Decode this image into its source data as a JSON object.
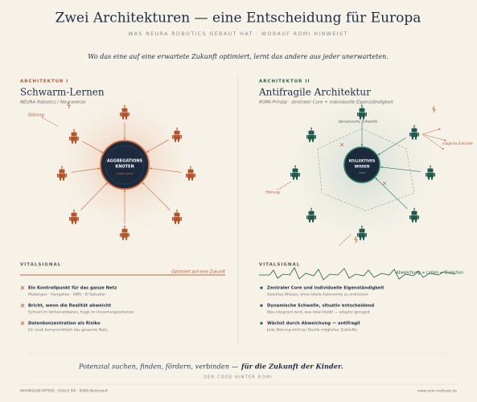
{
  "header": {
    "title": "Zwei Architekturen — eine Entscheidung für Europa",
    "subtitle": "WAS NEURA ROBOTICS GEBAUT HAT · WORAUF ROMI HINWEIST",
    "tagline": "Wo das eine auf eine erwartete Zukunft optimiert, lernt das andere aus jeder unerwarteten."
  },
  "panels": [
    {
      "kicker": "ARCHITEKTUR I",
      "title": "Schwarm-Lernen",
      "subtitle": "NEURA Robotics / Neuraverse",
      "node": [
        "AGGREGATIONS",
        "KNOTEN"
      ],
      "node_note": "single point",
      "disturbance": "Störung",
      "vital_label": "VITALSIGNAL",
      "vital_note": "Optimiert auf eine Zukunft",
      "items": [
        {
          "title": "Ein Kontrollpunkt für das ganze Netz",
          "text": "Metzingen · Hangzhou · AWS · El Salvador"
        },
        {
          "title": "Bricht, wenn die Realität abweicht",
          "text": "Schnell im Vorhersehbaren, fragil im Unvorhergesehenen"
        },
        {
          "title": "Datenkonzentration als Risiko",
          "text": "Ein Leak kompromittiert das gesamte Netz"
        }
      ]
    },
    {
      "kicker": "ARCHITEKTUR II",
      "title": "Antifragile Architektur",
      "subtitle": "ROMI-Prinzip · zentraler Core + individuelle Eigenständigkeit",
      "node": [
        "KOLLEKTIVES",
        "WISSEN"
      ],
      "node_note": "Core",
      "disturbance": "Störung",
      "threshold": "dynamische Schwelle",
      "futures": "mögliche Zukünfte",
      "vital_label": "VITALSIGNAL",
      "vital_note": "Abweichung = Leben = Evolution",
      "items": [
        {
          "title": "Zentraler Core und individuelle Eigenständigkeit",
          "text": "Geteiltes Wissen, ohne lokale Autonomie zu erdrücken"
        },
        {
          "title": "Dynamische Schwelle, situativ entscheidend",
          "text": "Was integriert wird, was lokal bleibt — adaptiv geregelt"
        },
        {
          "title": "Wächst durch Abweichung — antifragil",
          "text": "Jede Störung wird zur Quelle möglicher Zukünfte"
        }
      ]
    }
  ],
  "footer": {
    "quote": "Potenzial suchen, finden, fördern, verbinden —",
    "quote_end": "für die Zukunft der Kinder.",
    "tagline": "DER CODE HINTER ROMI",
    "credit": "MAXIMILIAN MITERA · EAGLE SIX · ROMI-Methode®",
    "url": "www.romi-methode.de"
  }
}
